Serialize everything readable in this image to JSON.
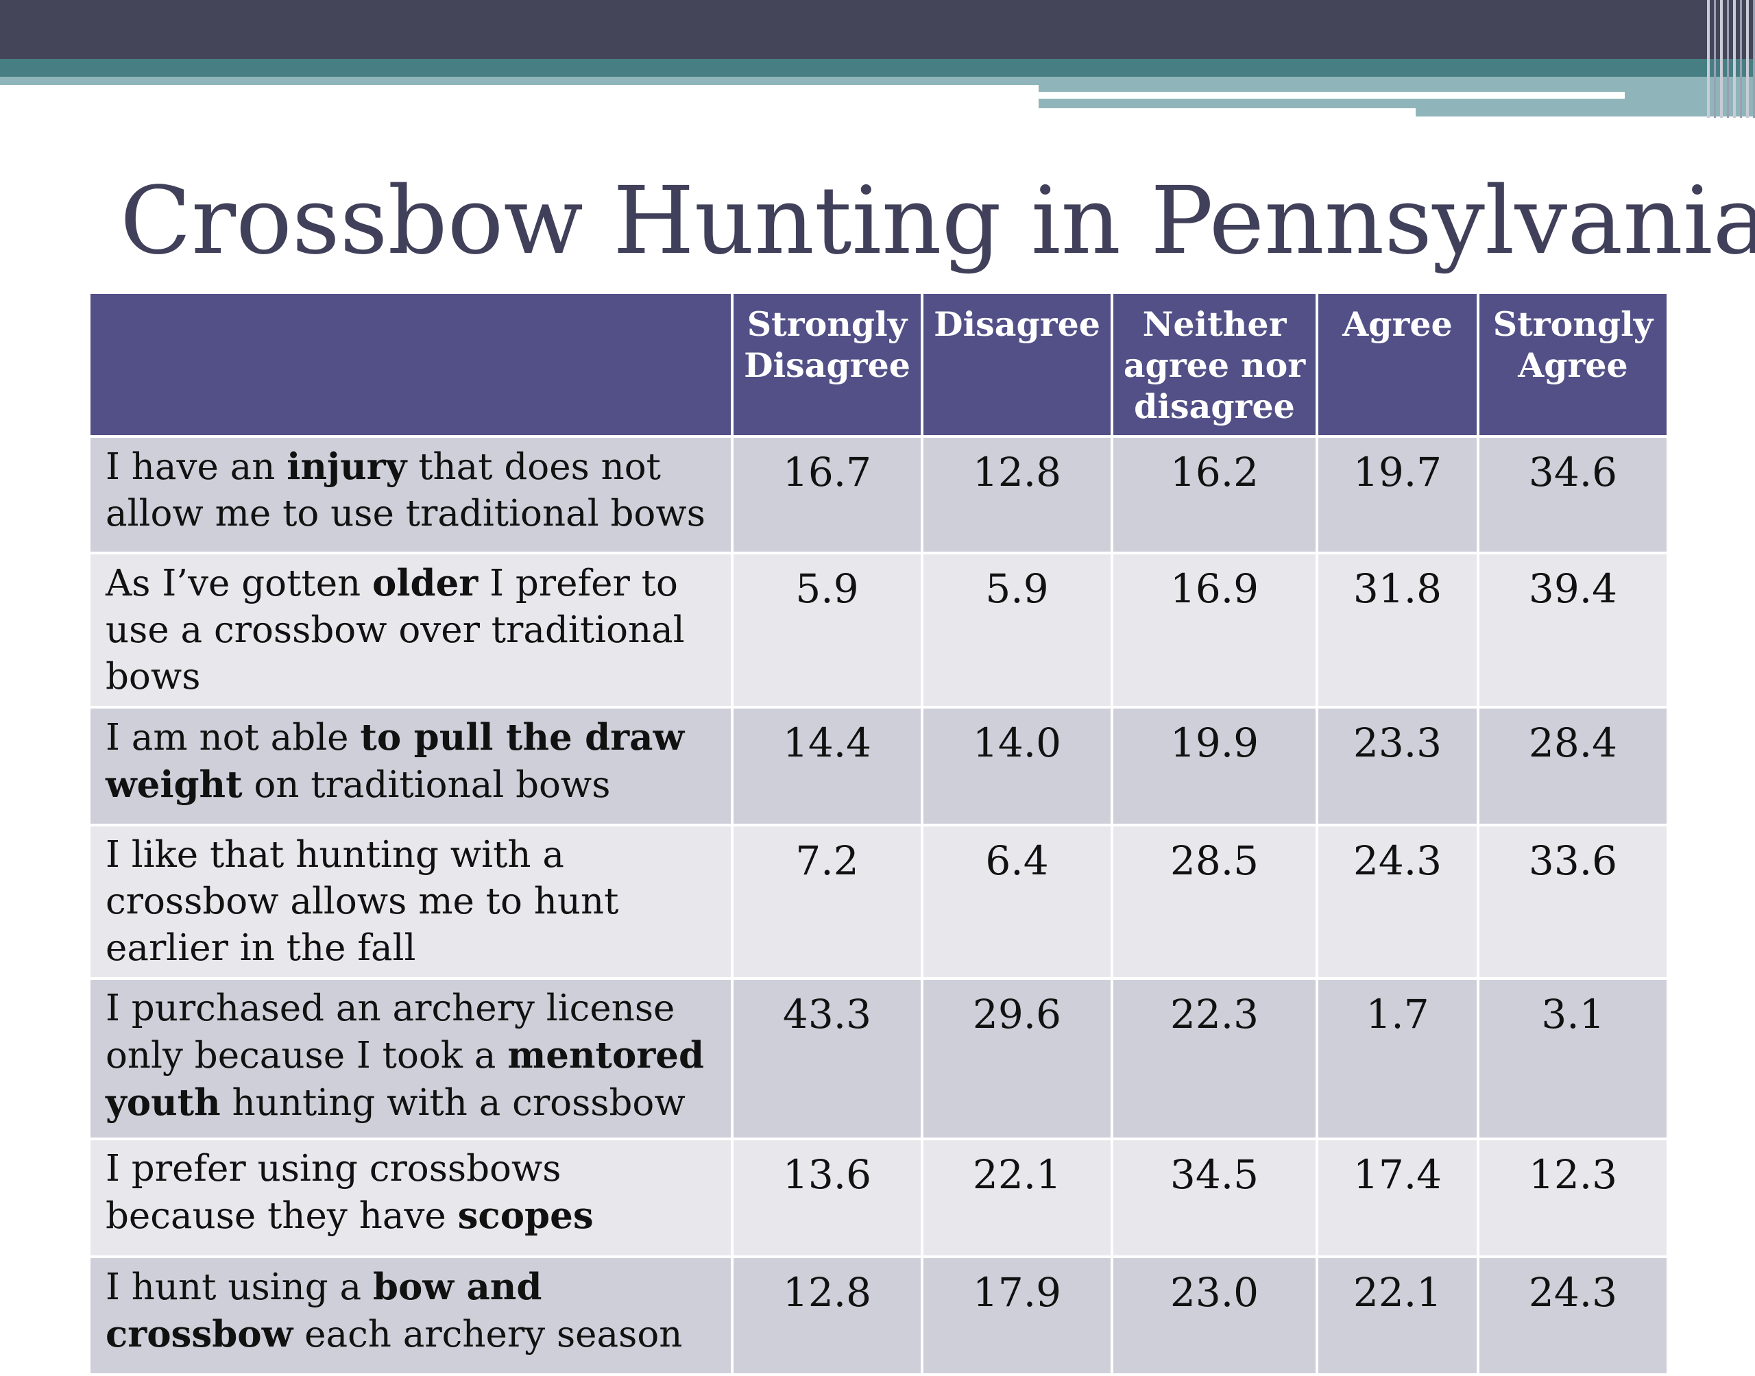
{
  "slide": {
    "title": "Crossbow Hunting in Pennsylvania"
  },
  "table": {
    "headers": [
      "",
      "Strongly Disagree",
      "Disagree",
      "Neither agree nor disagree",
      "Agree",
      "Strongly Agree"
    ],
    "rows": [
      {
        "statement": [
          {
            "text": "I have an ",
            "bold": false
          },
          {
            "text": "injury",
            "bold": true
          },
          {
            "text": " that does not allow me to use traditional bows",
            "bold": false
          }
        ],
        "values": [
          "16.7",
          "12.8",
          "16.2",
          "19.7",
          "34.6"
        ]
      },
      {
        "statement": [
          {
            "text": "As I’ve gotten ",
            "bold": false
          },
          {
            "text": "older",
            "bold": true
          },
          {
            "text": " I prefer to use a crossbow over traditional bows",
            "bold": false
          }
        ],
        "values": [
          "5.9",
          "5.9",
          "16.9",
          "31.8",
          "39.4"
        ]
      },
      {
        "statement": [
          {
            "text": "I am not able ",
            "bold": false
          },
          {
            "text": "to pull the draw weight",
            "bold": true
          },
          {
            "text": " on traditional bows",
            "bold": false
          }
        ],
        "values": [
          "14.4",
          "14.0",
          "19.9",
          "23.3",
          "28.4"
        ]
      },
      {
        "statement": [
          {
            "text": "I like that hunting with a crossbow allows me to hunt earlier in the fall",
            "bold": false
          }
        ],
        "values": [
          "7.2",
          "6.4",
          "28.5",
          "24.3",
          "33.6"
        ]
      },
      {
        "statement": [
          {
            "text": "I purchased an archery license only because I took a ",
            "bold": false
          },
          {
            "text": "mentored youth",
            "bold": true
          },
          {
            "text": " hunting with a crossbow",
            "bold": false
          }
        ],
        "values": [
          "43.3",
          "29.6",
          "22.3",
          "1.7",
          "3.1"
        ]
      },
      {
        "statement": [
          {
            "text": "I prefer using crossbows because they have ",
            "bold": false
          },
          {
            "text": "scopes",
            "bold": true
          }
        ],
        "values": [
          "13.6",
          "22.1",
          "34.5",
          "17.4",
          "12.3"
        ]
      },
      {
        "statement": [
          {
            "text": "I hunt using a ",
            "bold": false
          },
          {
            "text": "bow and crossbow",
            "bold": true
          },
          {
            "text": " each archery season",
            "bold": false
          }
        ],
        "values": [
          "12.8",
          "17.9",
          "23.0",
          "22.1",
          "24.3"
        ]
      }
    ]
  },
  "colors": {
    "top_bar": "#444558",
    "accent_teal": "#477e83",
    "header_fill": "#525087",
    "row_dark": "#cfcfda",
    "row_light": "#e8e8ec",
    "title_text": "#41405a"
  }
}
